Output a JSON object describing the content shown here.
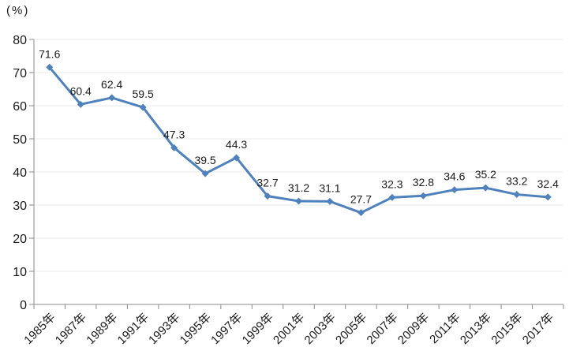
{
  "unit_label": "(%)",
  "colors": {
    "series": "#4F81BD",
    "grid": "#E9E9E9",
    "axis": "#8C8C8C",
    "text": "#1A1A1A"
  },
  "chart_data": {
    "type": "line",
    "title": "",
    "xlabel": "",
    "ylabel": "(%)",
    "categories": [
      "1985年",
      "1987年",
      "1989年",
      "1991年",
      "1993年",
      "1995年",
      "1997年",
      "1999年",
      "2001年",
      "2003年",
      "2005年",
      "2007年",
      "2009年",
      "2011年",
      "2013年",
      "2015年",
      "2017年"
    ],
    "values": [
      71.6,
      60.4,
      62.4,
      59.5,
      47.3,
      39.5,
      44.3,
      32.7,
      31.2,
      31.1,
      27.7,
      32.3,
      32.8,
      34.6,
      35.2,
      33.2,
      32.4
    ],
    "data_labels": [
      "71.6",
      "60.4",
      "62.4",
      "59.5",
      "47.3",
      "39.5",
      "44.3",
      "32.7",
      "31.2",
      "31.1",
      "27.7",
      "32.3",
      "32.8",
      "34.6",
      "35.2",
      "33.2",
      "32.4"
    ],
    "ylim": [
      0,
      80
    ],
    "yticks": [
      0,
      10,
      20,
      30,
      40,
      50,
      60,
      70,
      80
    ],
    "grid": true,
    "legend": false,
    "marker": "diamond",
    "show_data_labels": true,
    "x_tick_rotation": -45
  }
}
